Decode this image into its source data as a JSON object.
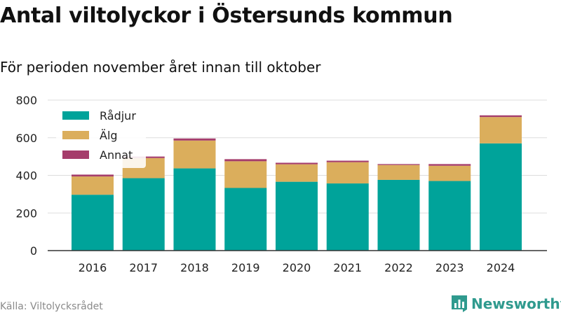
{
  "header": {
    "title": "Antal viltolyckor i Östersunds kommun",
    "subtitle": "För perioden november året innan till oktober"
  },
  "footer": {
    "source": "Källa: Viltolycksrådet",
    "brand": "Newsworthy",
    "brand_icon": "bar-chart-logo-icon"
  },
  "colors": {
    "Rådjur": "#00a39a",
    "Älg": "#dbae5c",
    "Annat": "#a53d6b",
    "grid": "#dddddd",
    "axis": "#333333",
    "brand": "#2f9a8e"
  },
  "chart_data": {
    "type": "bar",
    "stacked": true,
    "categories": [
      "2016",
      "2017",
      "2018",
      "2019",
      "2020",
      "2021",
      "2022",
      "2023",
      "2024"
    ],
    "series": [
      {
        "name": "Rådjur",
        "values": [
          297,
          385,
          437,
          333,
          366,
          357,
          376,
          370,
          570
        ]
      },
      {
        "name": "Älg",
        "values": [
          97,
          107,
          148,
          142,
          93,
          113,
          79,
          81,
          140
        ]
      },
      {
        "name": "Annat",
        "values": [
          10,
          8,
          11,
          11,
          8,
          8,
          5,
          9,
          9
        ]
      }
    ],
    "ylim": [
      0,
      800
    ],
    "yticks": [
      0,
      200,
      400,
      600,
      800
    ],
    "grid": true,
    "legend_position": "top-left",
    "xlabel": "",
    "ylabel": ""
  }
}
